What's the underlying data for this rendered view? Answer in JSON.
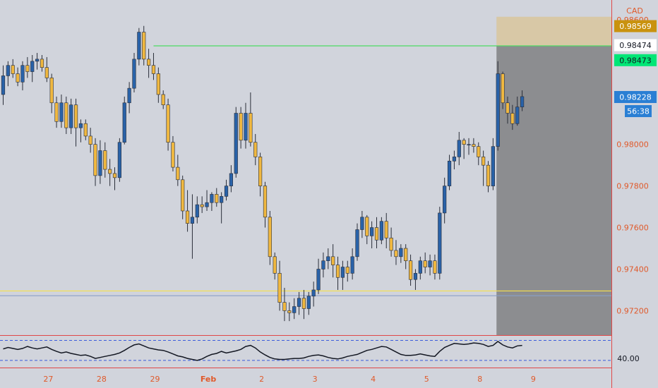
{
  "chart_data": {
    "type": "candlestick",
    "currency_label": "CAD",
    "y_axis": {
      "min": 0.9712,
      "max": 0.9862,
      "ticks": [
        {
          "value": 0.98,
          "label": "0.98000"
        },
        {
          "value": 0.978,
          "label": "0.97800"
        },
        {
          "value": 0.976,
          "label": "0.97600"
        },
        {
          "value": 0.974,
          "label": "0.97400"
        },
        {
          "value": 0.972,
          "label": "0.97200"
        }
      ],
      "partial_top_label": "0.98600"
    },
    "x_axis": {
      "ticks": [
        {
          "label": "27",
          "bar": 9
        },
        {
          "label": "28",
          "bar": 20
        },
        {
          "label": "29",
          "bar": 31
        },
        {
          "label": "Feb",
          "bar": 42,
          "bold": true
        },
        {
          "label": "2",
          "bar": 53
        },
        {
          "label": "3",
          "bar": 64
        },
        {
          "label": "4",
          "bar": 76
        },
        {
          "label": "5",
          "bar": 87
        },
        {
          "label": "8",
          "bar": 98
        },
        {
          "label": "9",
          "bar": 109
        }
      ]
    },
    "price_badges": [
      {
        "label": "0.98569",
        "value": 0.98569,
        "bg": "#c9920e",
        "fg": "#ffffff"
      },
      {
        "label": "0.98474",
        "value": 0.98474,
        "bg": "#ffffff",
        "fg": "#131722"
      },
      {
        "label": "0.98473",
        "value": 0.98473,
        "bg": "#00e676",
        "fg": "#131722"
      },
      {
        "label": "0.98228",
        "value": 0.98228,
        "bg": "#2a7fd4",
        "fg": "#ffffff"
      },
      {
        "label": "56:38",
        "value": 0.98175,
        "bg": "#2a7fd4",
        "fg": "#ffffff"
      }
    ],
    "levels": [
      {
        "name": "resistance",
        "value": 0.98474,
        "color": "#4cd964",
        "from_bar": 31
      },
      {
        "name": "support-upper",
        "value": 0.97295,
        "color": "#f5e04a"
      },
      {
        "name": "support-lower",
        "value": 0.97272,
        "color": "#8aa0c8"
      }
    ],
    "zone": {
      "start_bar": 102,
      "top": 0.98614,
      "mid": 0.98474,
      "top_color": "#d8c8a6",
      "body_color": "#8c8d90"
    },
    "colors": {
      "up": "#2962a8",
      "down": "#f0b840",
      "wick": "#2a2e39"
    },
    "candles": [
      [
        0.9824,
        0.9838,
        0.9819,
        0.9833
      ],
      [
        0.9833,
        0.984,
        0.9828,
        0.9838
      ],
      [
        0.9838,
        0.9841,
        0.9832,
        0.9834
      ],
      [
        0.9834,
        0.9837,
        0.9828,
        0.983
      ],
      [
        0.983,
        0.984,
        0.9826,
        0.9838
      ],
      [
        0.9838,
        0.9842,
        0.9832,
        0.9835
      ],
      [
        0.9835,
        0.9843,
        0.983,
        0.984
      ],
      [
        0.984,
        0.9844,
        0.9836,
        0.9841
      ],
      [
        0.9841,
        0.9843,
        0.9835,
        0.9837
      ],
      [
        0.9837,
        0.9842,
        0.983,
        0.9832
      ],
      [
        0.9832,
        0.9834,
        0.9815,
        0.982
      ],
      [
        0.982,
        0.9823,
        0.9808,
        0.9811
      ],
      [
        0.9811,
        0.9824,
        0.9808,
        0.982
      ],
      [
        0.982,
        0.9823,
        0.9805,
        0.9808
      ],
      [
        0.9808,
        0.9822,
        0.9805,
        0.9819
      ],
      [
        0.9819,
        0.9822,
        0.9799,
        0.9808
      ],
      [
        0.9808,
        0.9812,
        0.9801,
        0.981
      ],
      [
        0.981,
        0.9812,
        0.9802,
        0.9804
      ],
      [
        0.9804,
        0.9808,
        0.9796,
        0.98
      ],
      [
        0.98,
        0.9803,
        0.978,
        0.9785
      ],
      [
        0.9785,
        0.9802,
        0.9781,
        0.9797
      ],
      [
        0.9797,
        0.9801,
        0.9784,
        0.9788
      ],
      [
        0.9788,
        0.9793,
        0.978,
        0.9786
      ],
      [
        0.9786,
        0.9789,
        0.9778,
        0.9784
      ],
      [
        0.9784,
        0.9803,
        0.9782,
        0.9801
      ],
      [
        0.9801,
        0.9823,
        0.98,
        0.982
      ],
      [
        0.982,
        0.983,
        0.9815,
        0.9827
      ],
      [
        0.9827,
        0.9844,
        0.9825,
        0.9841
      ],
      [
        0.9841,
        0.9856,
        0.9838,
        0.9854
      ],
      [
        0.9854,
        0.9857,
        0.9838,
        0.9841
      ],
      [
        0.9841,
        0.9846,
        0.9832,
        0.9838
      ],
      [
        0.9838,
        0.9844,
        0.9831,
        0.9834
      ],
      [
        0.9834,
        0.9837,
        0.982,
        0.9824
      ],
      [
        0.9824,
        0.9826,
        0.9817,
        0.9819
      ],
      [
        0.9819,
        0.9822,
        0.9797,
        0.9801
      ],
      [
        0.9801,
        0.9804,
        0.9787,
        0.9789
      ],
      [
        0.9789,
        0.9795,
        0.978,
        0.9783
      ],
      [
        0.9783,
        0.9785,
        0.9764,
        0.9768
      ],
      [
        0.9768,
        0.9778,
        0.9758,
        0.9762
      ],
      [
        0.9762,
        0.9776,
        0.9745,
        0.9765
      ],
      [
        0.9765,
        0.9775,
        0.9762,
        0.9771
      ],
      [
        0.9771,
        0.9775,
        0.9767,
        0.977
      ],
      [
        0.977,
        0.9778,
        0.9768,
        0.9772
      ],
      [
        0.9772,
        0.9777,
        0.9768,
        0.9776
      ],
      [
        0.9776,
        0.9779,
        0.977,
        0.9772
      ],
      [
        0.9772,
        0.9777,
        0.9762,
        0.9775
      ],
      [
        0.9775,
        0.9783,
        0.9773,
        0.978
      ],
      [
        0.978,
        0.979,
        0.9777,
        0.9786
      ],
      [
        0.9786,
        0.9818,
        0.9784,
        0.9815
      ],
      [
        0.9815,
        0.9818,
        0.9798,
        0.9802
      ],
      [
        0.9802,
        0.982,
        0.9798,
        0.9815
      ],
      [
        0.9815,
        0.9825,
        0.9799,
        0.9801
      ],
      [
        0.9801,
        0.9805,
        0.979,
        0.9794
      ],
      [
        0.9794,
        0.9796,
        0.9775,
        0.978
      ],
      [
        0.978,
        0.9782,
        0.976,
        0.9765
      ],
      [
        0.9765,
        0.9768,
        0.9742,
        0.9746
      ],
      [
        0.9746,
        0.9748,
        0.9735,
        0.9738
      ],
      [
        0.9738,
        0.9744,
        0.972,
        0.9724
      ],
      [
        0.9724,
        0.9731,
        0.9715,
        0.972
      ],
      [
        0.972,
        0.9724,
        0.9715,
        0.9719
      ],
      [
        0.9719,
        0.9726,
        0.9716,
        0.9722
      ],
      [
        0.9722,
        0.9729,
        0.9718,
        0.9726
      ],
      [
        0.9726,
        0.973,
        0.9716,
        0.9721
      ],
      [
        0.9721,
        0.9729,
        0.9718,
        0.9727
      ],
      [
        0.9727,
        0.9734,
        0.9722,
        0.973
      ],
      [
        0.973,
        0.9745,
        0.9728,
        0.974
      ],
      [
        0.974,
        0.9748,
        0.9736,
        0.9744
      ],
      [
        0.9744,
        0.975,
        0.974,
        0.9746
      ],
      [
        0.9746,
        0.9752,
        0.9736,
        0.9742
      ],
      [
        0.9742,
        0.9746,
        0.973,
        0.9736
      ],
      [
        0.9736,
        0.9744,
        0.973,
        0.9741
      ],
      [
        0.9741,
        0.9744,
        0.9734,
        0.9738
      ],
      [
        0.9738,
        0.975,
        0.9735,
        0.9746
      ],
      [
        0.9746,
        0.9762,
        0.9744,
        0.9759
      ],
      [
        0.9759,
        0.9768,
        0.9755,
        0.9765
      ],
      [
        0.9765,
        0.9766,
        0.9752,
        0.9756
      ],
      [
        0.9756,
        0.9763,
        0.975,
        0.976
      ],
      [
        0.976,
        0.9765,
        0.975,
        0.9754
      ],
      [
        0.9754,
        0.9765,
        0.9752,
        0.9763
      ],
      [
        0.9763,
        0.9767,
        0.975,
        0.9755
      ],
      [
        0.9755,
        0.976,
        0.9746,
        0.9749
      ],
      [
        0.9749,
        0.9754,
        0.9742,
        0.9746
      ],
      [
        0.9746,
        0.9752,
        0.9743,
        0.975
      ],
      [
        0.975,
        0.9752,
        0.974,
        0.9744
      ],
      [
        0.9744,
        0.9747,
        0.9732,
        0.9735
      ],
      [
        0.9735,
        0.974,
        0.973,
        0.9738
      ],
      [
        0.9738,
        0.9746,
        0.9735,
        0.9744
      ],
      [
        0.9744,
        0.9748,
        0.9738,
        0.9741
      ],
      [
        0.9741,
        0.9747,
        0.9737,
        0.9744
      ],
      [
        0.9744,
        0.9747,
        0.9735,
        0.9738
      ],
      [
        0.9738,
        0.977,
        0.9735,
        0.9767
      ],
      [
        0.9767,
        0.9784,
        0.9762,
        0.978
      ],
      [
        0.978,
        0.9795,
        0.9778,
        0.9792
      ],
      [
        0.9792,
        0.9797,
        0.9788,
        0.9794
      ],
      [
        0.9794,
        0.9806,
        0.979,
        0.9802
      ],
      [
        0.9802,
        0.9803,
        0.9793,
        0.98
      ],
      [
        0.98,
        0.9803,
        0.9795,
        0.98
      ],
      [
        0.98,
        0.9803,
        0.9796,
        0.9799
      ],
      [
        0.9799,
        0.9801,
        0.979,
        0.9794
      ],
      [
        0.9794,
        0.9797,
        0.978,
        0.979
      ],
      [
        0.979,
        0.9792,
        0.9777,
        0.978
      ],
      [
        0.978,
        0.9803,
        0.9778,
        0.9799
      ],
      [
        0.9799,
        0.984,
        0.9797,
        0.9834
      ],
      [
        0.9834,
        0.9835,
        0.9817,
        0.982
      ],
      [
        0.982,
        0.9823,
        0.981,
        0.9815
      ],
      [
        0.9815,
        0.9819,
        0.9807,
        0.981
      ],
      [
        0.981,
        0.9823,
        0.9809,
        0.9818
      ],
      [
        0.9818,
        0.9826,
        0.9816,
        0.9823
      ]
    ],
    "oscillator": {
      "label": "40.00",
      "upper_level": 70,
      "lower_level": 30,
      "values": [
        53,
        56,
        54,
        52,
        54,
        58,
        55,
        53,
        55,
        57,
        52,
        48,
        45,
        47,
        44,
        42,
        40,
        41,
        38,
        34,
        36,
        38,
        40,
        42,
        45,
        50,
        56,
        61,
        63,
        59,
        55,
        53,
        51,
        50,
        47,
        43,
        39,
        37,
        34,
        32,
        30,
        33,
        38,
        42,
        44,
        48,
        45,
        47,
        49,
        52,
        58,
        60,
        55,
        47,
        41,
        36,
        33,
        32,
        32,
        33,
        34,
        34,
        35,
        38,
        40,
        41,
        39,
        36,
        34,
        33,
        35,
        38,
        40,
        42,
        46,
        50,
        52,
        55,
        58,
        57,
        52,
        47,
        42,
        40,
        40,
        41,
        43,
        41,
        39,
        38,
        48,
        56,
        60,
        64,
        63,
        62,
        63,
        65,
        64,
        62,
        58,
        60,
        68,
        61,
        57,
        55,
        59,
        60
      ]
    }
  }
}
